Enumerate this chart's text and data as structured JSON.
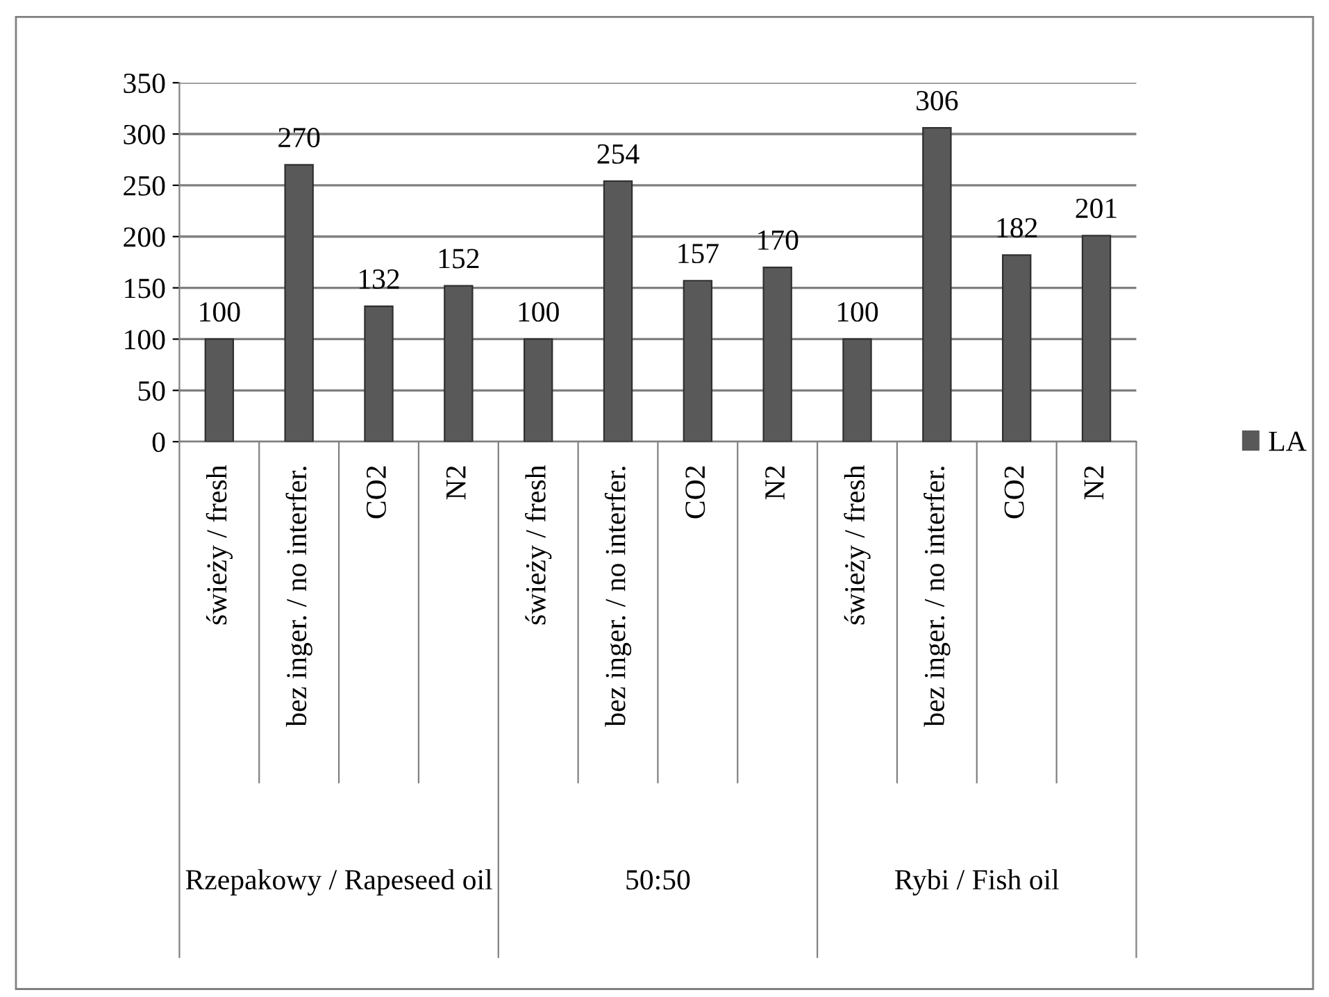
{
  "chart_data": {
    "type": "bar",
    "categories": [
      "świeży / fresh",
      "bez inger. / no interfer.",
      "CO2",
      "N2",
      "świeży / fresh",
      "bez inger. / no interfer.",
      "CO2",
      "N2",
      "świeży / fresh",
      "bez inger. / no interfer.",
      "CO2",
      "N2"
    ],
    "series": [
      {
        "name": "LA",
        "color": "#595959",
        "values": [
          100,
          270,
          132,
          152,
          100,
          254,
          157,
          170,
          100,
          306,
          182,
          201
        ]
      }
    ],
    "annotations": [
      "Rzepakowy / Rapeseed oil",
      "50:50",
      "Rybi / Fish oil"
    ],
    "ylim": [
      0,
      350
    ],
    "yticks": [
      0,
      50,
      100,
      150,
      200,
      250,
      300,
      350
    ],
    "grid": "y",
    "legend": "right",
    "data_labels": true
  }
}
